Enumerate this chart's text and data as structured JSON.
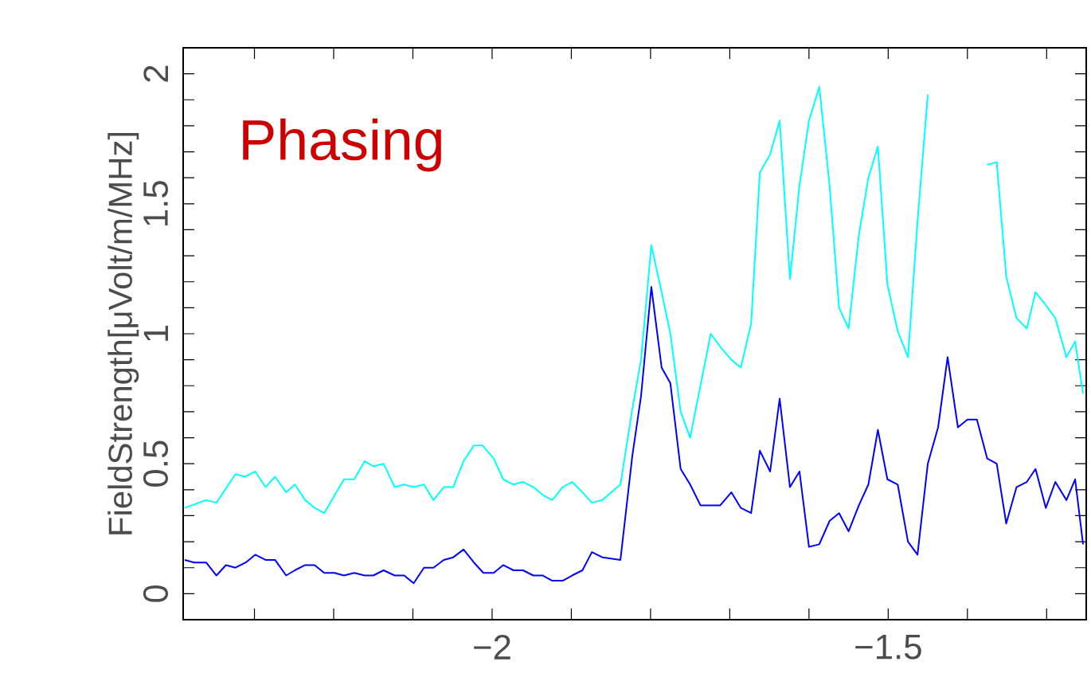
{
  "chart_data": {
    "type": "line",
    "ylabel": "FieldStrength[μVolt/m/MHz]",
    "annotations": [
      "Phasing"
    ],
    "xlim": [
      -2.39,
      -1.25
    ],
    "ylim": [
      -0.1,
      2.1
    ],
    "xticks": [
      {
        "value": -2.3,
        "label": null
      },
      {
        "value": -2.2,
        "label": null
      },
      {
        "value": -2.1,
        "label": null
      },
      {
        "value": -2,
        "label": "−2"
      },
      {
        "value": -1.9,
        "label": null
      },
      {
        "value": -1.8,
        "label": null
      },
      {
        "value": -1.7,
        "label": null
      },
      {
        "value": -1.6,
        "label": null
      },
      {
        "value": -1.5,
        "label": "−1.5"
      },
      {
        "value": -1.4,
        "label": null
      },
      {
        "value": -1.3,
        "label": null
      }
    ],
    "yticks": [
      0,
      {
        "value": 0.1,
        "label": null
      },
      {
        "value": 0.2,
        "label": null
      },
      {
        "value": 0.3,
        "label": null
      },
      {
        "value": 0.4,
        "label": null
      },
      0.5,
      {
        "value": 0.6,
        "label": null
      },
      {
        "value": 0.7,
        "label": null
      },
      {
        "value": 0.8,
        "label": null
      },
      {
        "value": 0.9,
        "label": null
      },
      1,
      {
        "value": 1.1,
        "label": null
      },
      {
        "value": 1.2,
        "label": null
      },
      {
        "value": 1.3,
        "label": null
      },
      {
        "value": 1.4,
        "label": null
      },
      1.5,
      {
        "value": 1.6,
        "label": null
      },
      {
        "value": 1.7,
        "label": null
      },
      {
        "value": 1.8,
        "label": null
      },
      {
        "value": 1.9,
        "label": null
      },
      2
    ],
    "marker": "none",
    "line_style": "solid",
    "series": [
      {
        "color": "#00ffff",
        "x": [
          -2.388,
          -2.361,
          -2.348,
          -2.324,
          -2.312,
          -2.299,
          -2.286,
          -2.274,
          -2.26,
          -2.249,
          -2.236,
          -2.224,
          -2.212,
          -2.187,
          -2.174,
          -2.161,
          -2.15,
          -2.137,
          -2.123,
          -2.111,
          -2.099,
          -2.086,
          -2.074,
          -2.061,
          -2.049,
          -2.036,
          -2.023,
          -2.012,
          -1.998,
          -1.986,
          -1.973,
          -1.961,
          -1.948,
          -1.936,
          -1.924,
          -1.911,
          -1.899,
          -1.886,
          -1.874,
          -1.861,
          -1.838,
          -1.823,
          -1.812,
          -1.799,
          -1.786,
          -1.775,
          -1.762,
          -1.75,
          -1.737,
          -1.724,
          -1.712,
          -1.698,
          -1.686,
          -1.673,
          -1.662,
          -1.649,
          -1.637,
          -1.624,
          -1.612,
          -1.6,
          -1.587,
          -1.574,
          -1.562,
          -1.55,
          -1.537,
          -1.525,
          -1.513,
          -1.501,
          -1.488,
          -1.475,
          -1.463,
          -1.45,
          -1.437,
          -1.425,
          -1.412,
          -1.4,
          -1.383,
          -1.375,
          -1.363,
          -1.351,
          -1.338,
          -1.325,
          -1.314,
          -1.301,
          -1.289,
          -1.275,
          -1.264,
          -1.254
        ],
        "values": [
          0.33,
          0.36,
          0.35,
          0.46,
          0.45,
          0.47,
          0.41,
          0.45,
          0.39,
          0.42,
          0.36,
          0.33,
          0.31,
          0.44,
          0.44,
          0.51,
          0.49,
          0.5,
          0.41,
          0.42,
          0.41,
          0.42,
          0.36,
          0.41,
          0.41,
          0.51,
          0.57,
          0.57,
          0.52,
          0.44,
          0.42,
          0.43,
          0.41,
          0.38,
          0.36,
          0.41,
          0.43,
          0.39,
          0.35,
          0.36,
          0.42,
          0.71,
          0.9,
          1.34,
          1.16,
          1.0,
          0.7,
          0.6,
          0.8,
          1.0,
          0.95,
          0.9,
          0.87,
          1.04,
          1.62,
          1.69,
          1.82,
          1.21,
          1.57,
          1.82,
          1.95,
          1.57,
          1.1,
          1.02,
          1.38,
          1.6,
          1.72,
          1.19,
          1.01,
          0.91,
          1.43,
          1.92,
          null,
          null,
          null,
          null,
          null,
          1.65,
          1.66,
          1.22,
          1.06,
          1.02,
          1.16,
          1.11,
          1.06,
          0.91,
          0.97,
          0.77
        ]
      },
      {
        "color": "#0000ff",
        "x": [
          -2.388,
          -2.376,
          -2.361,
          -2.348,
          -2.336,
          -2.324,
          -2.311,
          -2.299,
          -2.286,
          -2.274,
          -2.26,
          -2.249,
          -2.236,
          -2.224,
          -2.212,
          -2.199,
          -2.187,
          -2.174,
          -2.161,
          -2.15,
          -2.137,
          -2.123,
          -2.111,
          -2.099,
          -2.086,
          -2.074,
          -2.061,
          -2.049,
          -2.036,
          -2.023,
          -2.011,
          -1.998,
          -1.986,
          -1.973,
          -1.961,
          -1.948,
          -1.936,
          -1.924,
          -1.911,
          -1.899,
          -1.886,
          -1.874,
          -1.861,
          -1.838,
          -1.823,
          -1.812,
          -1.799,
          -1.786,
          -1.775,
          -1.762,
          -1.75,
          -1.737,
          -1.724,
          -1.712,
          -1.698,
          -1.686,
          -1.673,
          -1.662,
          -1.649,
          -1.637,
          -1.624,
          -1.612,
          -1.6,
          -1.587,
          -1.574,
          -1.562,
          -1.55,
          -1.537,
          -1.525,
          -1.513,
          -1.501,
          -1.488,
          -1.475,
          -1.463,
          -1.45,
          -1.437,
          -1.425,
          -1.412,
          -1.4,
          -1.388,
          -1.375,
          -1.363,
          -1.351,
          -1.338,
          -1.325,
          -1.314,
          -1.301,
          -1.289,
          -1.275,
          -1.264,
          -1.254
        ],
        "values": [
          0.13,
          0.12,
          0.12,
          0.07,
          0.11,
          0.1,
          0.12,
          0.15,
          0.13,
          0.13,
          0.07,
          0.09,
          0.11,
          0.11,
          0.08,
          0.08,
          0.07,
          0.08,
          0.07,
          0.07,
          0.09,
          0.07,
          0.07,
          0.04,
          0.1,
          0.1,
          0.13,
          0.14,
          0.17,
          0.12,
          0.08,
          0.08,
          0.11,
          0.09,
          0.09,
          0.07,
          0.07,
          0.05,
          0.05,
          0.07,
          0.09,
          0.16,
          0.14,
          0.13,
          0.53,
          0.76,
          1.18,
          0.87,
          0.81,
          0.48,
          0.42,
          0.34,
          0.34,
          0.34,
          0.39,
          0.33,
          0.31,
          0.55,
          0.47,
          0.75,
          0.41,
          0.47,
          0.18,
          0.19,
          0.28,
          0.31,
          0.24,
          0.34,
          0.42,
          0.63,
          0.44,
          0.42,
          0.2,
          0.15,
          0.5,
          0.64,
          0.91,
          0.64,
          0.67,
          0.67,
          0.52,
          0.5,
          0.27,
          0.41,
          0.43,
          0.48,
          0.33,
          0.43,
          0.36,
          0.44,
          0.19
        ]
      }
    ]
  }
}
